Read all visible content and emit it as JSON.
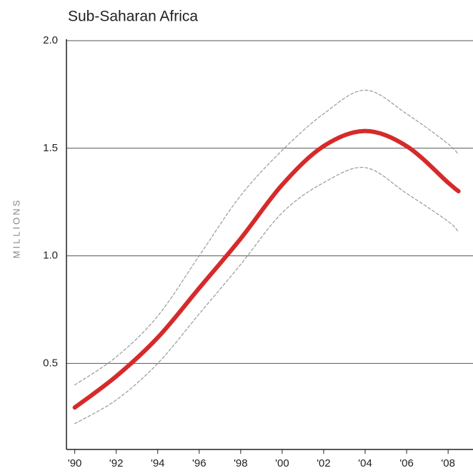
{
  "chart_data": {
    "type": "line",
    "title": "Sub-Saharan Africa",
    "y_label": "MILLIONS",
    "x": [
      1990,
      1992,
      1994,
      1996,
      1998,
      2000,
      2002,
      2004,
      2006,
      2008,
      2008.5
    ],
    "series": [
      {
        "color": "#999999",
        "dashed": true,
        "width": 1.2,
        "values": [
          0.4,
          0.53,
          0.72,
          1.0,
          1.28,
          1.49,
          1.66,
          1.77,
          1.66,
          1.52,
          1.47
        ]
      },
      {
        "color": "#999999",
        "dashed": true,
        "width": 1.2,
        "values": [
          0.22,
          0.33,
          0.5,
          0.73,
          0.96,
          1.2,
          1.34,
          1.41,
          1.29,
          1.16,
          1.11
        ]
      },
      {
        "color": "#d62a2a",
        "dashed": false,
        "width": 6,
        "values": [
          0.295,
          0.44,
          0.62,
          0.85,
          1.08,
          1.33,
          1.51,
          1.58,
          1.51,
          1.34,
          1.3
        ]
      }
    ],
    "xlim": [
      1989.6,
      2009.2
    ],
    "ylim": [
      0.1,
      2.0
    ],
    "xticks": [
      {
        "value": 1990,
        "label": "'90"
      },
      {
        "value": 1992,
        "label": "'92"
      },
      {
        "value": 1994,
        "label": "'94"
      },
      {
        "value": 1996,
        "label": "'96"
      },
      {
        "value": 1998,
        "label": "'98"
      },
      {
        "value": 2000,
        "label": "'00"
      },
      {
        "value": 2002,
        "label": "'02"
      },
      {
        "value": 2004,
        "label": "'04"
      },
      {
        "value": 2006,
        "label": "'06"
      },
      {
        "value": 2008,
        "label": "'08"
      }
    ],
    "yticks": [
      {
        "value": 0.5,
        "label": "0.5"
      },
      {
        "value": 1.0,
        "label": "1.0"
      },
      {
        "value": 1.5,
        "label": "1.5"
      },
      {
        "value": 2.0,
        "label": "2.0"
      }
    ],
    "grid": true
  }
}
